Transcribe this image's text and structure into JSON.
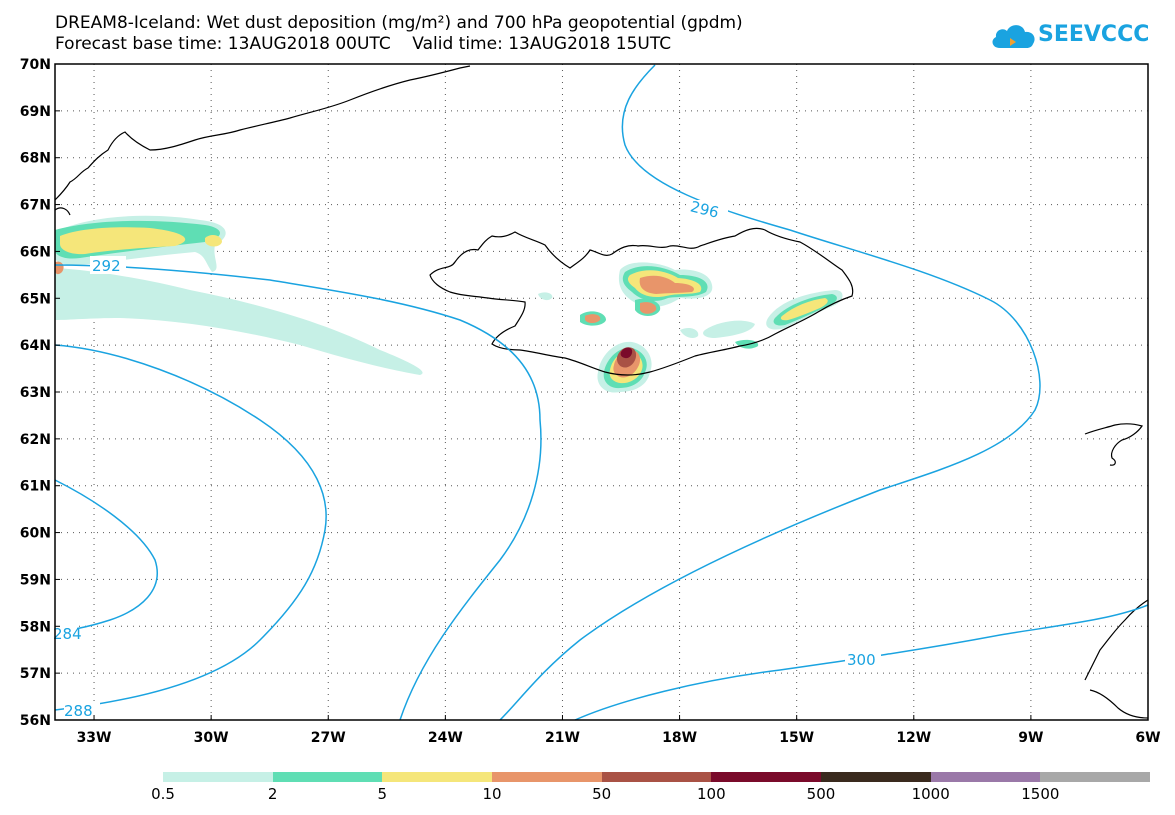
{
  "title_line1": "DREAM8-Iceland: Wet dust deposition (mg/m²) and 700 hPa geopotential (gpdm)",
  "title_line2": "Forecast base time: 13AUG2018 00UTC    Valid time: 13AUG2018 15UTC",
  "logo_text": "SEEVCCC",
  "lat_labels": [
    "70N",
    "69N",
    "68N",
    "67N",
    "66N",
    "65N",
    "64N",
    "63N",
    "62N",
    "61N",
    "60N",
    "59N",
    "58N",
    "57N",
    "56N"
  ],
  "lon_labels": [
    "33W",
    "30W",
    "27W",
    "24W",
    "21W",
    "18W",
    "15W",
    "12W",
    "9W",
    "6W"
  ],
  "contour_labels": [
    "296",
    "292",
    "300",
    "284",
    "288"
  ],
  "legend": {
    "colors": [
      "#c6f0e6",
      "#5fdeb4",
      "#f5e67a",
      "#e8956a",
      "#a95245",
      "#7a0a2a",
      "#3a2a1e",
      "#9a78a8",
      "#a8a8a8"
    ],
    "labels": [
      "0.5",
      "2",
      "5",
      "10",
      "50",
      "100",
      "500",
      "1000",
      "1500"
    ]
  },
  "colors": {
    "contour": "#1aa3e0",
    "frame": "#000000"
  }
}
